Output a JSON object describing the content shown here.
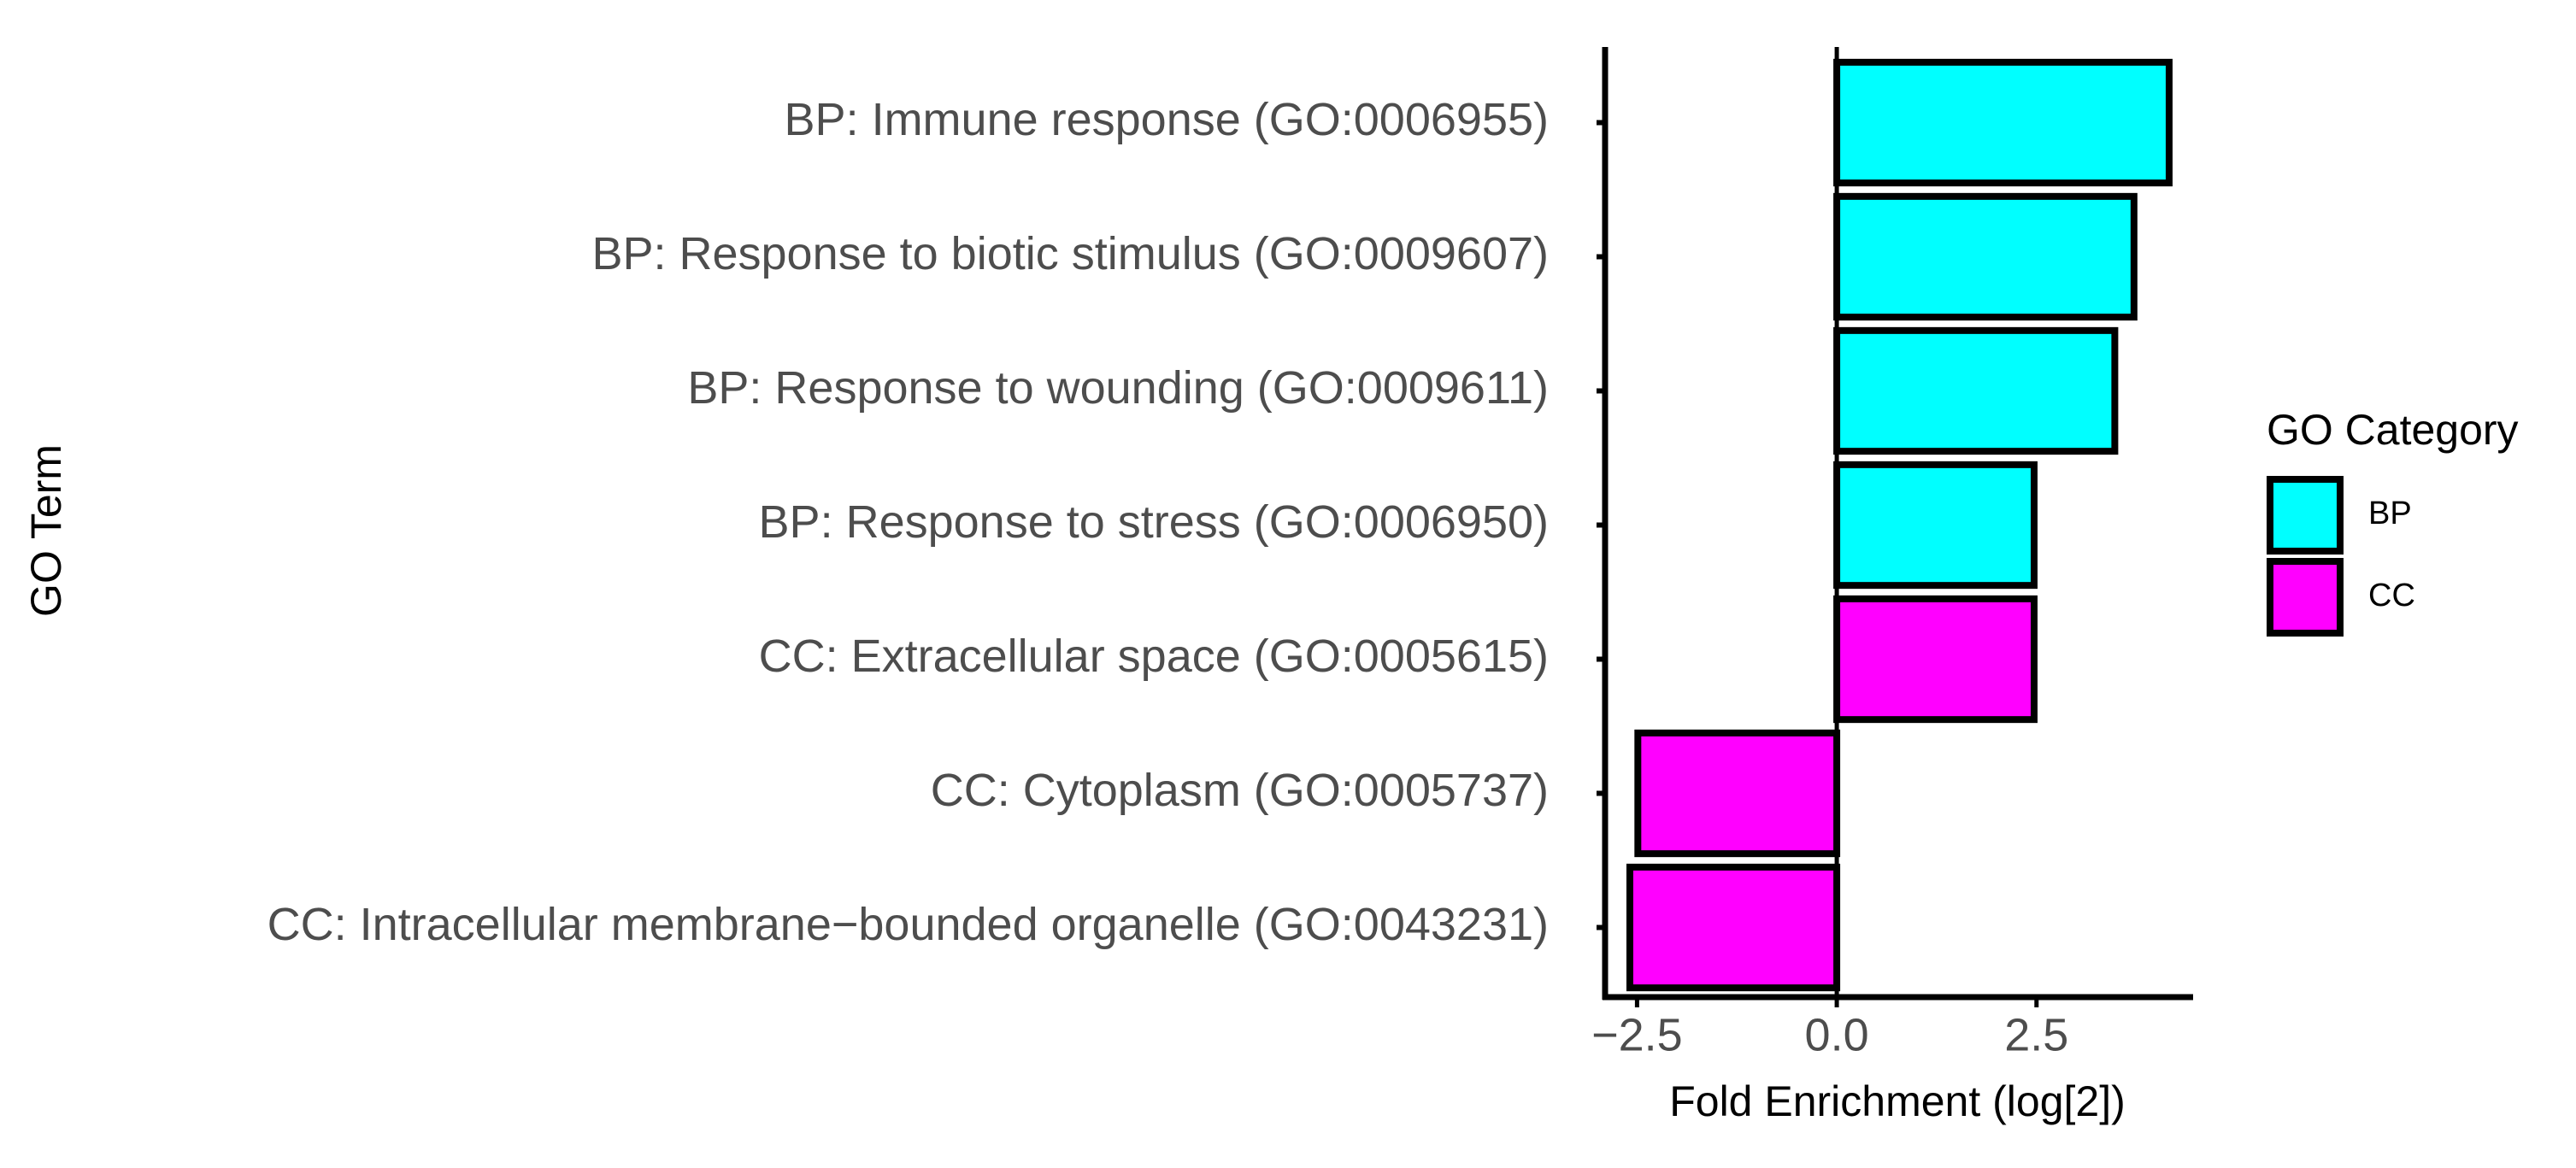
{
  "chart_data": {
    "type": "bar",
    "orientation": "horizontal",
    "x_label": "Fold Enrichment (log[2])",
    "y_label": "GO Term",
    "legend_title": "GO Category",
    "legend_position": "right",
    "categories": [
      "BP: Immune response (GO:0006955)",
      "BP: Response to biotic stimulus (GO:0009607)",
      "BP: Response to wounding (GO:0009611)",
      "BP: Response to stress (GO:0006950)",
      "CC: Extracellular space (GO:0005615)",
      "CC: Cytoplasm (GO:0005737)",
      "CC: Intracellular membrane−bounded organelle (GO:0043231)"
    ],
    "series": [
      {
        "name": "BP",
        "color": "#00ffff",
        "values": [
          4.16,
          3.72,
          3.48,
          2.47,
          null,
          null,
          null
        ]
      },
      {
        "name": "CC",
        "color": "#ff00ff",
        "values": [
          null,
          null,
          null,
          null,
          2.47,
          -2.49,
          -2.59
        ]
      }
    ],
    "xlim": [
      -2.9,
      4.46
    ],
    "xticks": [
      {
        "value": -2.5,
        "label": "−2.5"
      },
      {
        "value": 0,
        "label": "0.0"
      },
      2.5
    ],
    "grid": false
  }
}
